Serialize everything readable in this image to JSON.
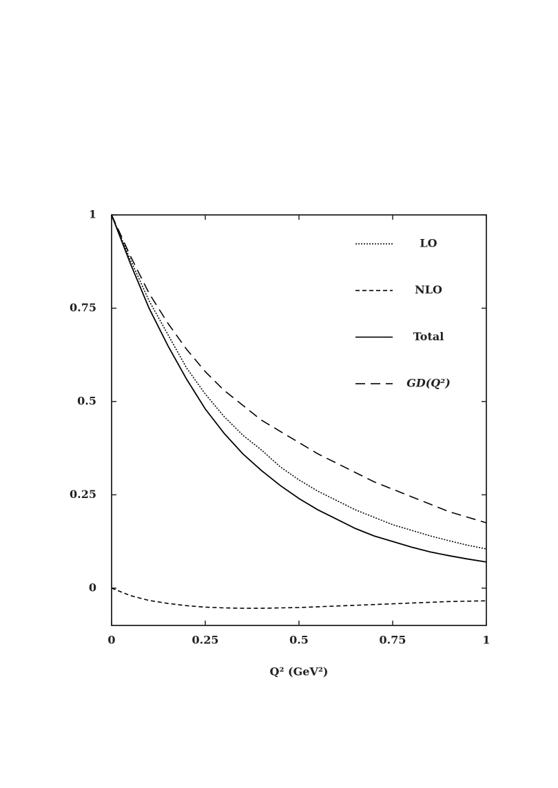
{
  "chart_data": {
    "type": "line",
    "x_label": "Q² (GeV²)",
    "x": [
      0,
      0.05,
      0.1,
      0.15,
      0.2,
      0.25,
      0.3,
      0.35,
      0.4,
      0.45,
      0.5,
      0.55,
      0.6,
      0.65,
      0.7,
      0.75,
      0.8,
      0.85,
      0.9,
      0.95,
      1
    ],
    "series": [
      {
        "name": "LO",
        "color": "#000000",
        "dash": "dotted",
        "values": [
          1,
          0.88,
          0.77,
          0.68,
          0.59,
          0.52,
          0.46,
          0.41,
          0.37,
          0.325,
          0.29,
          0.26,
          0.235,
          0.21,
          0.19,
          0.17,
          0.155,
          0.14,
          0.127,
          0.115,
          0.105
        ]
      },
      {
        "name": "NLO",
        "color": "#000000",
        "dash": "dashed",
        "values": [
          0,
          -0.02,
          -0.033,
          -0.041,
          -0.047,
          -0.051,
          -0.053,
          -0.054,
          -0.054,
          -0.053,
          -0.052,
          -0.05,
          -0.048,
          -0.046,
          -0.044,
          -0.042,
          -0.04,
          -0.038,
          -0.036,
          -0.035,
          -0.034
        ]
      },
      {
        "name": "Total",
        "color": "#000000",
        "dash": "solid",
        "values": [
          1,
          0.87,
          0.75,
          0.65,
          0.56,
          0.48,
          0.415,
          0.36,
          0.315,
          0.275,
          0.24,
          0.21,
          0.185,
          0.16,
          0.14,
          0.125,
          0.11,
          0.097,
          0.087,
          0.078,
          0.07
        ]
      },
      {
        "name": "GD(Q²)",
        "color": "#000000",
        "dash": "longdash",
        "values": [
          1,
          0.89,
          0.79,
          0.71,
          0.64,
          0.58,
          0.53,
          0.49,
          0.45,
          0.42,
          0.39,
          0.36,
          0.335,
          0.31,
          0.285,
          0.265,
          0.245,
          0.225,
          0.205,
          0.19,
          0.175
        ]
      }
    ],
    "xlim": [
      0,
      1
    ],
    "xticks": [
      0,
      0.25,
      0.5,
      0.75,
      1
    ],
    "ylim": [
      -0.1,
      1
    ],
    "yticks": [
      0,
      0.25,
      0.5,
      0.75,
      1
    ],
    "legend": "upper-right"
  }
}
